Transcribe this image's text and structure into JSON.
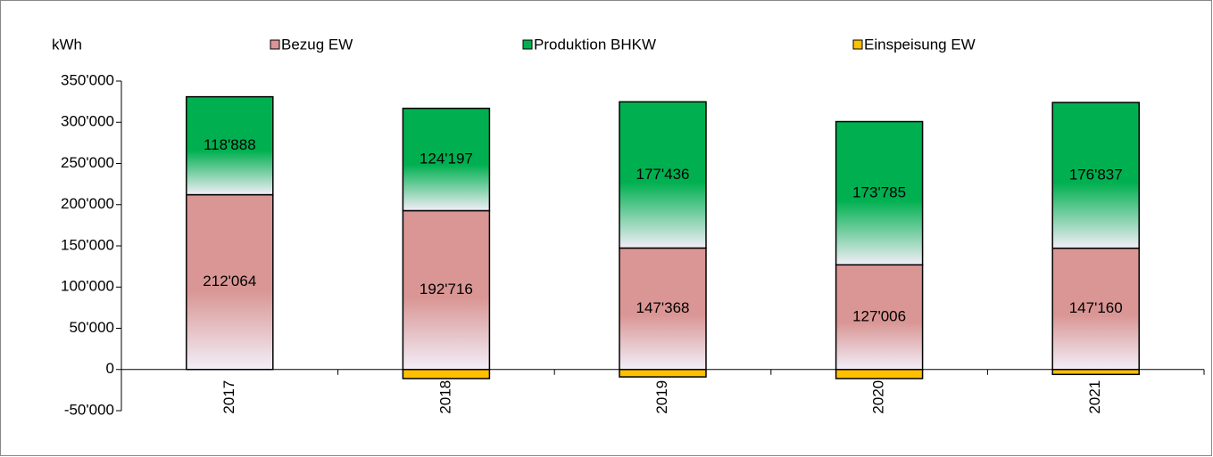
{
  "chart_data": {
    "type": "stacked-bar",
    "y_label": "kWh",
    "categories": [
      "2017",
      "2018",
      "2019",
      "2020",
      "2021"
    ],
    "series": [
      {
        "name": "Bezug EW",
        "color": "#d99694",
        "values": [
          212064,
          192716,
          147368,
          127006,
          147160
        ],
        "value_labels": [
          "212'064",
          "192'716",
          "147'368",
          "127'006",
          "147'160"
        ]
      },
      {
        "name": "Produktion BHKW",
        "color": "#00b050",
        "values": [
          118888,
          124197,
          177436,
          173785,
          176837
        ],
        "value_labels": [
          "118'888",
          "124'197",
          "177'436",
          "173'785",
          "176'837"
        ]
      },
      {
        "name": "Einspeisung EW",
        "color": "#ffc000",
        "values": [
          0,
          -11000,
          -9000,
          -11000,
          -6000
        ]
      }
    ],
    "ylim": [
      -50000,
      350000
    ],
    "yticks": [
      {
        "value": -50000,
        "label": "-50'000"
      },
      0,
      {
        "value": 50000,
        "label": "50'000"
      },
      {
        "value": 100000,
        "label": "100'000"
      },
      {
        "value": 150000,
        "label": "150'000"
      },
      {
        "value": 200000,
        "label": "200'000"
      },
      {
        "value": 250000,
        "label": "250'000"
      },
      {
        "value": 300000,
        "label": "300'000"
      },
      {
        "value": 350000,
        "label": "350'000"
      }
    ],
    "legend": "top",
    "grid": false
  }
}
